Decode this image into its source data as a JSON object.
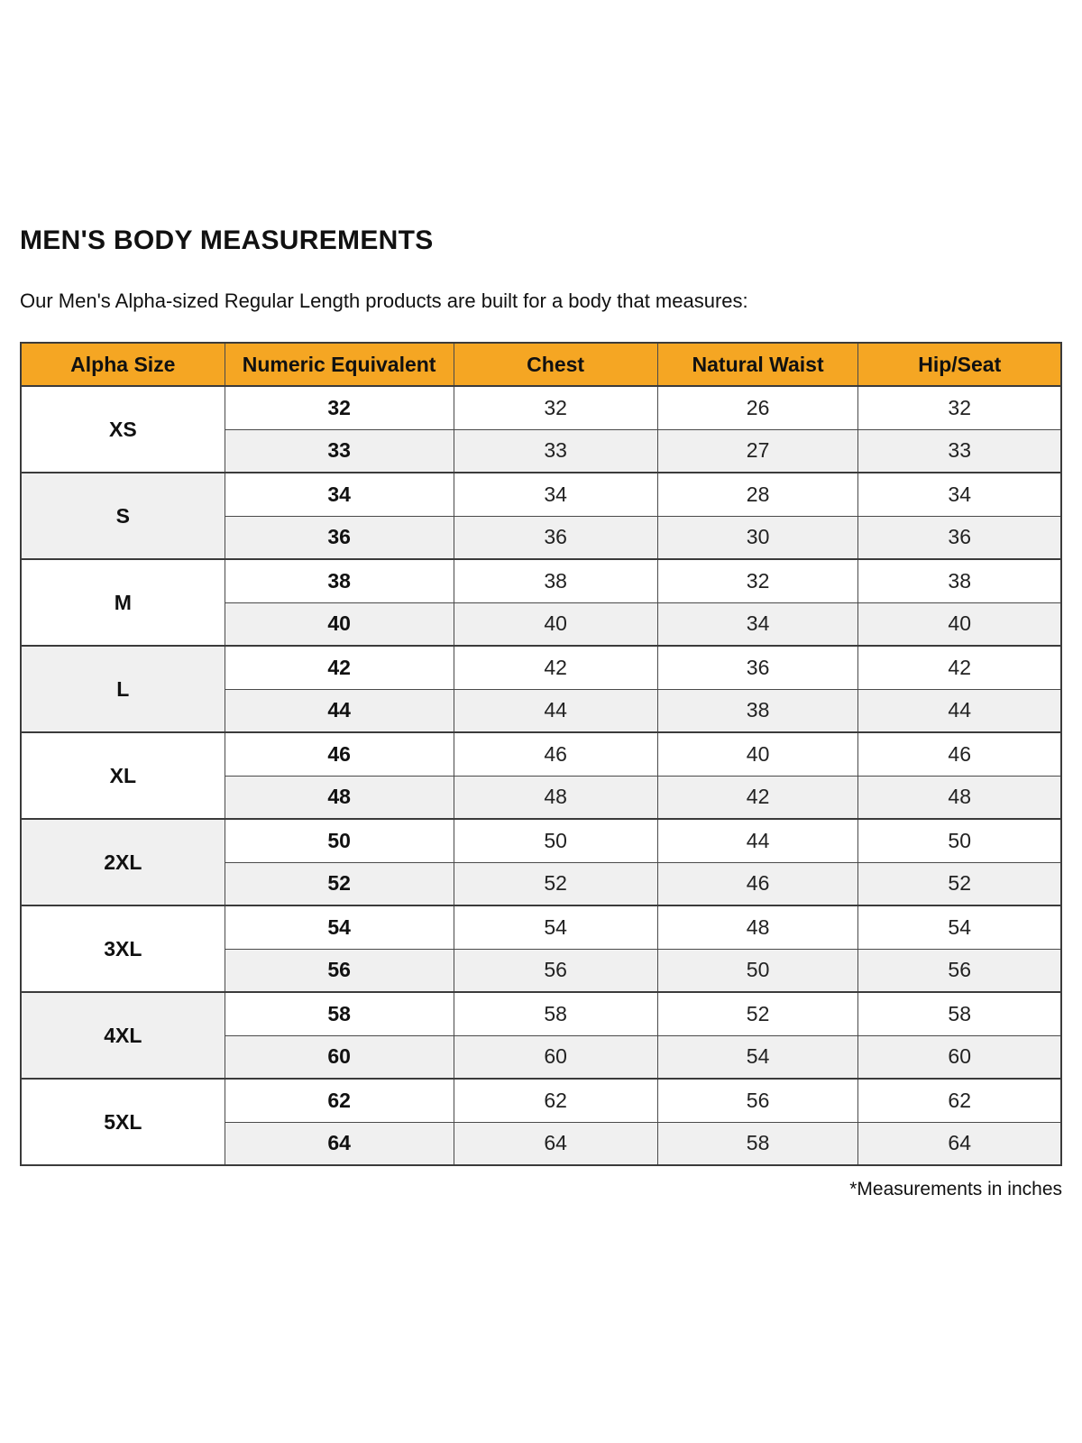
{
  "page": {
    "title": "MEN'S BODY MEASUREMENTS",
    "subtitle": "Our Men's Alpha-sized Regular Length products are built for a body that measures:",
    "footnote": "*Measurements in inches"
  },
  "colors": {
    "header_bg": "#F5A623",
    "alt_row_bg": "#F0F0F0",
    "border": "#4A4A4A",
    "text": "#1A1A1A"
  },
  "table": {
    "headers": [
      "Alpha Size",
      "Numeric Equivalent",
      "Chest",
      "Natural Waist",
      "Hip/Seat"
    ],
    "groups": [
      {
        "alpha": "XS",
        "rows": [
          [
            "32",
            "32",
            "26",
            "32"
          ],
          [
            "33",
            "33",
            "27",
            "33"
          ]
        ]
      },
      {
        "alpha": "S",
        "rows": [
          [
            "34",
            "34",
            "28",
            "34"
          ],
          [
            "36",
            "36",
            "30",
            "36"
          ]
        ]
      },
      {
        "alpha": "M",
        "rows": [
          [
            "38",
            "38",
            "32",
            "38"
          ],
          [
            "40",
            "40",
            "34",
            "40"
          ]
        ]
      },
      {
        "alpha": "L",
        "rows": [
          [
            "42",
            "42",
            "36",
            "42"
          ],
          [
            "44",
            "44",
            "38",
            "44"
          ]
        ]
      },
      {
        "alpha": "XL",
        "rows": [
          [
            "46",
            "46",
            "40",
            "46"
          ],
          [
            "48",
            "48",
            "42",
            "48"
          ]
        ]
      },
      {
        "alpha": "2XL",
        "rows": [
          [
            "50",
            "50",
            "44",
            "50"
          ],
          [
            "52",
            "52",
            "46",
            "52"
          ]
        ]
      },
      {
        "alpha": "3XL",
        "rows": [
          [
            "54",
            "54",
            "48",
            "54"
          ],
          [
            "56",
            "56",
            "50",
            "56"
          ]
        ]
      },
      {
        "alpha": "4XL",
        "rows": [
          [
            "58",
            "58",
            "52",
            "58"
          ],
          [
            "60",
            "60",
            "54",
            "60"
          ]
        ]
      },
      {
        "alpha": "5XL",
        "rows": [
          [
            "62",
            "62",
            "56",
            "62"
          ],
          [
            "64",
            "64",
            "58",
            "64"
          ]
        ]
      }
    ]
  }
}
